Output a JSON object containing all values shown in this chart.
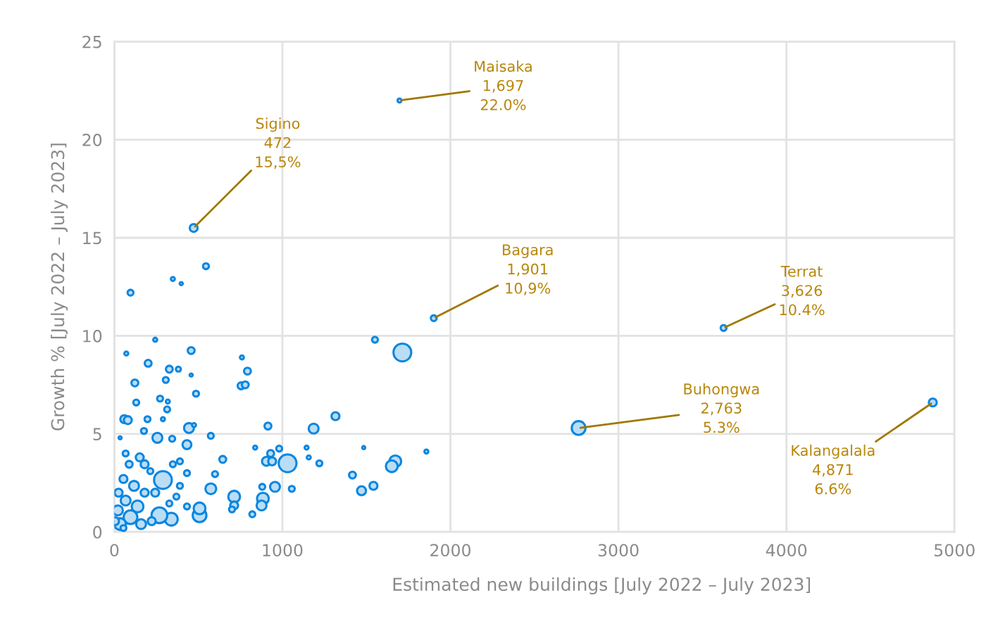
{
  "chart_data": {
    "type": "bubble",
    "xlabel": "Estimated new buildings [July 2022 – July 2023]",
    "ylabel": "Growth % [July 2022 – July 2023]",
    "xlim": [
      0,
      5000
    ],
    "xticks": [
      0,
      1000,
      2000,
      3000,
      4000,
      5000
    ],
    "ylim": [
      0,
      25
    ],
    "yticks": [
      0,
      5,
      10,
      15,
      20,
      25
    ],
    "grid": true,
    "marker": "circle",
    "series": [
      {
        "color": "#0a86e0",
        "x": [
          1697,
          472,
          1901,
          3626,
          2763,
          4871,
          1714,
          1551,
          545,
          348,
          398,
          96,
          243,
          71,
          457,
          759,
          201,
          327,
          381,
          457,
          792,
          122,
          306,
          754,
          779,
          486,
          130,
          272,
          318,
          314,
          59,
          80,
          197,
          289,
          444,
          474,
          914,
          1186,
          1316,
          176,
          256,
          344,
          432,
          574,
          645,
          838,
          981,
          930,
          905,
          939,
          1031,
          1144,
          1157,
          1220,
          1484,
          1857,
          1672,
          1651,
          1417,
          1542,
          1471,
          956,
          880,
          1056,
          599,
          574,
          713,
          713,
          700,
          884,
          876,
          821,
          507,
          507,
          339,
          268,
          289,
          34,
          67,
          88,
          151,
          180,
          214,
          54,
          117,
          180,
          25,
          67,
          138,
          21,
          96,
          34,
          159,
          222,
          369,
          390,
          432,
          348,
          390,
          243,
          327,
          432,
          54,
          4
        ],
        "values": [
          22.0,
          15.5,
          10.9,
          10.4,
          5.3,
          6.6,
          9.15,
          9.8,
          13.55,
          12.9,
          12.66,
          12.2,
          9.8,
          9.1,
          9.25,
          8.9,
          8.6,
          8.3,
          8.3,
          8.0,
          8.2,
          7.6,
          7.75,
          7.45,
          7.5,
          7.05,
          6.6,
          6.8,
          6.65,
          6.25,
          5.75,
          5.7,
          5.75,
          5.75,
          5.3,
          5.45,
          5.4,
          5.27,
          5.9,
          5.15,
          4.8,
          4.75,
          4.45,
          4.9,
          3.7,
          4.3,
          4.25,
          4.0,
          3.6,
          3.6,
          3.5,
          4.3,
          3.8,
          3.5,
          4.3,
          4.1,
          3.6,
          3.35,
          2.9,
          2.35,
          2.1,
          2.3,
          2.3,
          2.2,
          2.95,
          2.2,
          1.8,
          1.35,
          1.15,
          1.7,
          1.35,
          0.9,
          0.85,
          1.2,
          0.65,
          0.85,
          2.65,
          4.8,
          4.0,
          3.45,
          3.8,
          3.45,
          3.1,
          2.7,
          2.35,
          2.0,
          2.0,
          1.6,
          1.3,
          1.1,
          0.75,
          0.4,
          0.4,
          0.55,
          1.8,
          2.35,
          3.0,
          3.45,
          3.6,
          2.0,
          1.45,
          1.3,
          0.2,
          0.55
        ],
        "sizes": [
          0.05,
          0.2,
          0.11,
          0.11,
          0.6,
          0.2,
          1,
          0.11,
          0.11,
          0.05,
          0.03,
          0.11,
          0.05,
          0.05,
          0.15,
          0.05,
          0.15,
          0.15,
          0.08,
          0.03,
          0.15,
          0.15,
          0.11,
          0.15,
          0.15,
          0.11,
          0.11,
          0.11,
          0.05,
          0.11,
          0.2,
          0.2,
          0.11,
          0.05,
          0.31,
          0.05,
          0.15,
          0.31,
          0.2,
          0.11,
          0.31,
          0.11,
          0.25,
          0.11,
          0.15,
          0.05,
          0.11,
          0.15,
          0.25,
          0.2,
          1,
          0.05,
          0.05,
          0.11,
          0.03,
          0.05,
          0.44,
          0.44,
          0.15,
          0.2,
          0.25,
          0.31,
          0.11,
          0.11,
          0.11,
          0.37,
          0.44,
          0.2,
          0.11,
          0.44,
          0.31,
          0.11,
          0.6,
          0.44,
          0.52,
          0.79,
          1,
          0.03,
          0.11,
          0.15,
          0.2,
          0.2,
          0.11,
          0.2,
          0.31,
          0.2,
          0.2,
          0.31,
          0.44,
          0.31,
          0.6,
          0.44,
          0.31,
          0.2,
          0.11,
          0.11,
          0.11,
          0.11,
          0.11,
          0.2,
          0.11,
          0.11,
          0.11,
          0.2
        ]
      }
    ],
    "annotations": [
      {
        "text": "Maisaka\n1,697\n22.0%",
        "x": 1697,
        "y": 22.0
      },
      {
        "text": "Sigino\n472\n15,5%",
        "x": 472,
        "y": 15.5
      },
      {
        "text": "Bagara\n1,901\n10,9%",
        "x": 1901,
        "y": 10.9
      },
      {
        "text": "Terrat\n3,626\n10.4%",
        "x": 3626,
        "y": 10.4
      },
      {
        "text": "Buhongwa\n2,763\n5.3%",
        "x": 2763,
        "y": 5.3
      },
      {
        "text": "Kalangalala\n4,871\n6.6%",
        "x": 4871,
        "y": 6.6
      }
    ]
  }
}
